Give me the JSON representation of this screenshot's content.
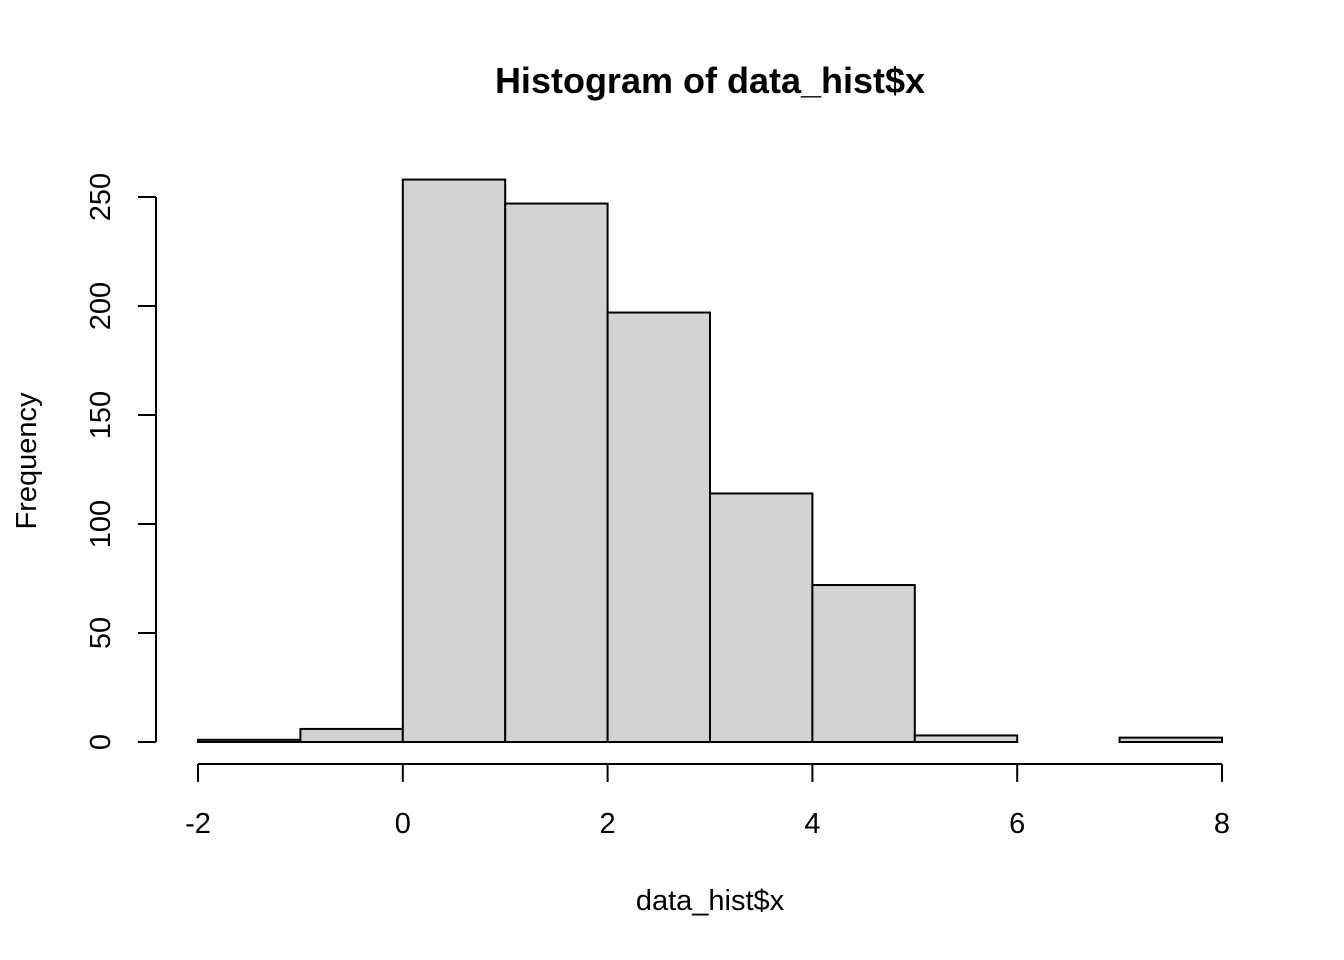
{
  "chart_data": {
    "type": "bar",
    "subtype": "histogram",
    "title": "Histogram of data_hist$x",
    "xlabel": "data_hist$x",
    "ylabel": "Frequency",
    "bin_edges": [
      -2,
      -1,
      0,
      1,
      2,
      3,
      4,
      5,
      6,
      7,
      8
    ],
    "counts": [
      1,
      6,
      258,
      247,
      197,
      114,
      72,
      3,
      0,
      2
    ],
    "xlim": [
      -2,
      8
    ],
    "ylim": [
      0,
      260
    ],
    "x_ticks": [
      -2,
      0,
      2,
      4,
      6,
      8
    ],
    "x_tick_labels": [
      "-2",
      "0",
      "2",
      "4",
      "6",
      "8"
    ],
    "y_ticks": [
      0,
      50,
      100,
      150,
      200,
      250
    ],
    "y_tick_labels": [
      "0",
      "50",
      "100",
      "150",
      "200",
      "250"
    ],
    "grid": false,
    "bar_fill": "#d3d3d3",
    "bar_stroke": "#000000"
  }
}
